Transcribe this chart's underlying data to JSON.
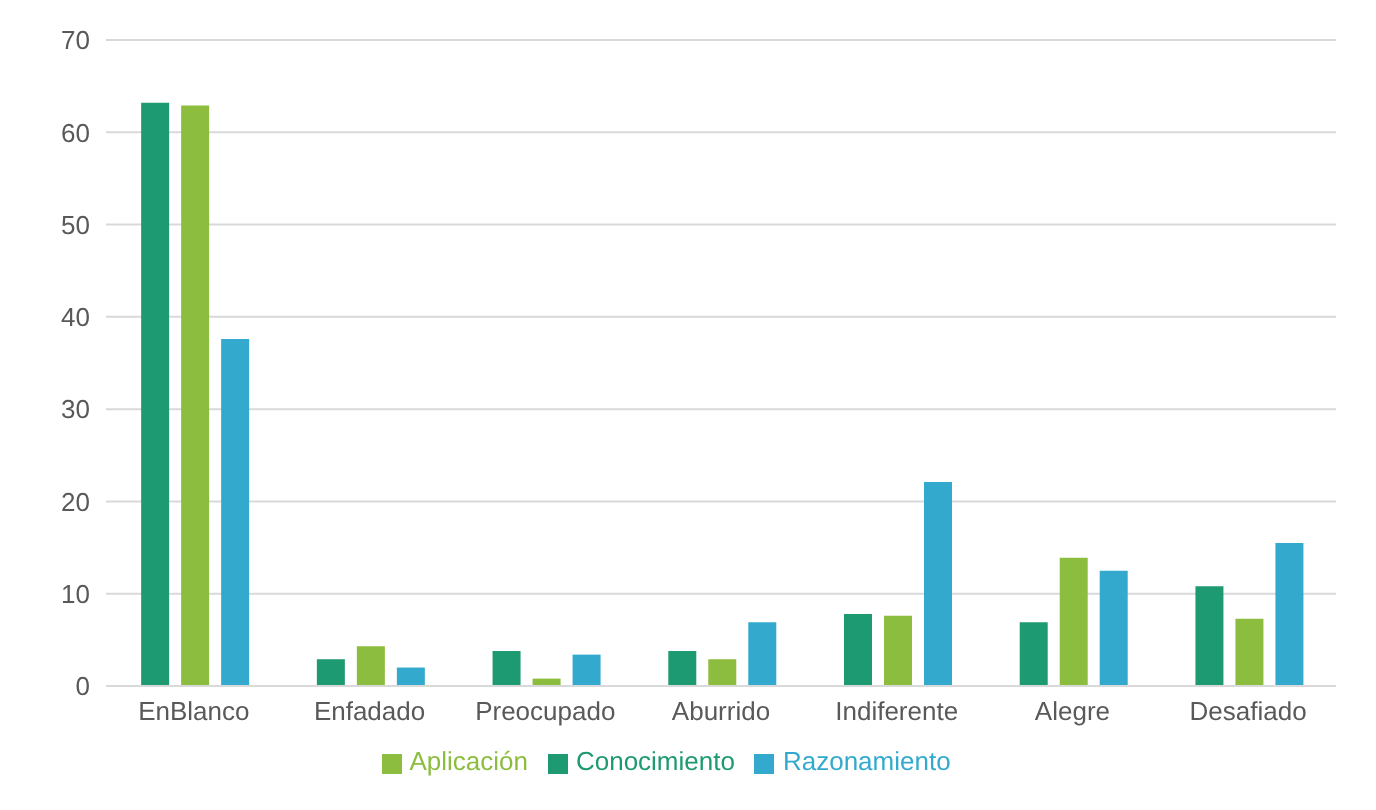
{
  "chart_data": {
    "type": "bar",
    "categories": [
      "EnBlanco",
      "Enfadado",
      "Preocupado",
      "Aburrido",
      "Indiferente",
      "Alegre",
      "Desafiado"
    ],
    "series": [
      {
        "name": "Conocimiento",
        "color": "#1e9a72",
        "values": [
          63.2,
          2.9,
          3.8,
          3.8,
          7.8,
          6.9,
          10.8
        ]
      },
      {
        "name": "Aplicación",
        "color": "#8cbd3e",
        "values": [
          62.9,
          4.3,
          0.8,
          2.9,
          7.6,
          13.9,
          7.3
        ]
      },
      {
        "name": "Razonamiento",
        "color": "#33aacd",
        "values": [
          37.6,
          2.0,
          3.4,
          6.9,
          22.1,
          12.5,
          15.5
        ]
      }
    ],
    "ylim": [
      0,
      70
    ],
    "yticks": [
      0,
      10,
      20,
      30,
      40,
      50,
      60,
      70
    ],
    "grid": "y",
    "legend": "bottom"
  }
}
